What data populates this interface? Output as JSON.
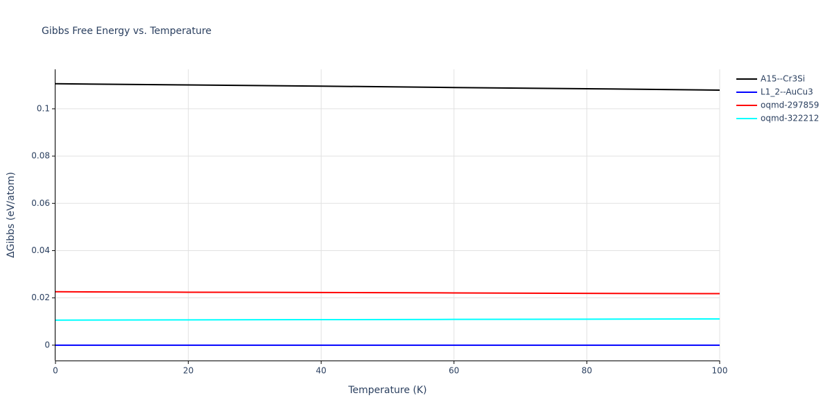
{
  "chart_data": {
    "type": "line",
    "title": "Gibbs Free Energy vs. Temperature",
    "x_label": "Temperature (K)",
    "y_label": "ΔGibbs (eV/atom)",
    "x": [
      0,
      20,
      40,
      60,
      80,
      100
    ],
    "series": [
      {
        "name": "A15--Cr3Si",
        "color": "#000000",
        "values": [
          0.1106,
          0.1101,
          0.1096,
          0.109,
          0.1085,
          0.1079
        ]
      },
      {
        "name": "L1_2--AuCu3",
        "color": "#0000ff",
        "values": [
          0,
          0,
          0,
          0,
          0,
          0
        ]
      },
      {
        "name": "oqmd-297859",
        "color": "#ff0000",
        "values": [
          0.0226,
          0.0224,
          0.0223,
          0.0221,
          0.0219,
          0.0218
        ]
      },
      {
        "name": "oqmd-322212",
        "color": "#00ffff",
        "values": [
          0.0106,
          0.0107,
          0.0108,
          0.0109,
          0.011,
          0.0111
        ]
      }
    ],
    "xlim": [
      0,
      100
    ],
    "xticks": [
      0,
      20,
      40,
      60,
      80,
      100
    ],
    "ylim": [
      -0.0065,
      0.1167
    ],
    "yticks": [
      0,
      0.02,
      0.04,
      0.06,
      0.08,
      0.1
    ],
    "grid": true,
    "legend": "right"
  }
}
